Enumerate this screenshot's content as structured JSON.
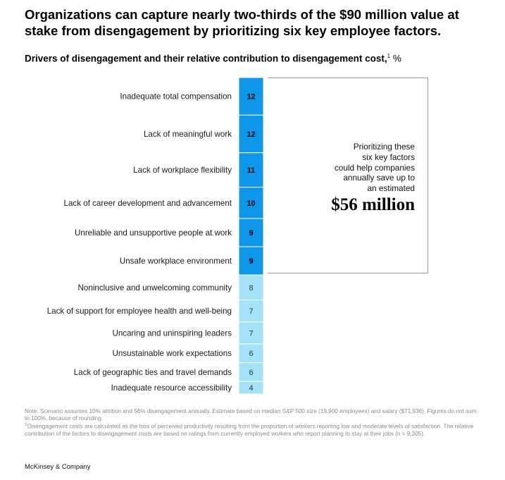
{
  "header": {
    "title": "Organizations can capture nearly two-thirds of the $90 million value at stake from disengagement by prioritizing six key employee factors.",
    "subtitle": "Drivers of disengagement and their relative contribution to disengagement cost,",
    "subtitle_footnote": "1",
    "subtitle_unit": "%"
  },
  "chart_data": {
    "type": "bar",
    "orientation": "horizontal-stacked-column",
    "categories": [
      "Inadequate total compensation",
      "Lack of meaningful work",
      "Lack of workplace flexibility",
      "Lack of career development and advancement",
      "Unreliable and unsupportive people at work",
      "Unsafe workplace environment",
      "Noninclusive and unwelcoming community",
      "Lack of support for employee health and well-being",
      "Uncaring and uninspiring leaders",
      "Unsustainable work expectations",
      "Lack of geographic ties and travel demands",
      "Inadequate resource accessibility"
    ],
    "values": [
      12,
      12,
      11,
      10,
      9,
      9,
      8,
      7,
      7,
      6,
      6,
      4
    ],
    "highlighted_count": 6,
    "colors": {
      "highlighted": "#0e96e8",
      "other": "#a3e2f8",
      "highlighted_text": "#000000",
      "other_text": "#333333"
    }
  },
  "callout": {
    "text_lines": [
      "Prioritizing these",
      "six key factors",
      "could help companies",
      "annually save up to",
      "an estimated"
    ],
    "amount": "$56 million"
  },
  "notes": {
    "note": "Note: Scenario assumes 10% attrition and 56% disengagement annually. Estimate based on median S&P 500 size (19,900 employees) and salary ($71,936). Figures do not sum to 100%, because of rounding.",
    "footnote_marker": "1",
    "footnote": "Disengagement costs are calculated as the loss of perceived productivity resulting from the proportion of workers reporting low and moderate levels of satisfaction. The relative contribution of the factors to disengagement costs are based on ratings from currently employed workers who report planning to stay at their jobs (n = 9,305)."
  },
  "source": "McKinsey & Company"
}
